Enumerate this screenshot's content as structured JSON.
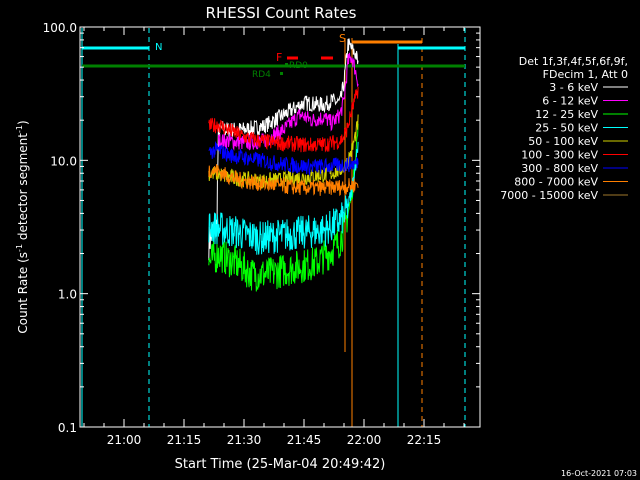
{
  "chart_data": {
    "type": "line",
    "title": "RHESSI Count Rates",
    "xlabel": "Start Time (25-Mar-04 20:49:42)",
    "ylabel": "Count Rate (s",
    "ylabel_exp": "-1",
    "ylabel_mid": " detector segment",
    "ylabel_exp2": "-1",
    "ylabel_end": ")",
    "yscale": "log",
    "ylim": [
      0.1,
      100.0
    ],
    "xlim": [
      "20:49:42",
      "22:29:42"
    ],
    "x_ticks": [
      "21:00",
      "21:15",
      "21:30",
      "21:45",
      "22:00",
      "22:15"
    ],
    "y_ticks": [
      "0.1",
      "1.0",
      "10.0",
      "100.0"
    ],
    "timestamp": "16-Oct-2021 07:03",
    "legend": {
      "placement": "right",
      "header1": "Det 1f,3f,4f,5f,6f,9f,",
      "header2": "FDecim 1, Att 0",
      "entries": [
        {
          "label": "3 - 6 keV",
          "color": "#ffffff"
        },
        {
          "label": "6 - 12 keV",
          "color": "#ff00ff"
        },
        {
          "label": "12 - 25 keV",
          "color": "#00ff00"
        },
        {
          "label": "25 - 50 keV",
          "color": "#00ffff"
        },
        {
          "label": "50 - 100 keV",
          "color": "#d2d200"
        },
        {
          "label": "100 - 300 keV",
          "color": "#ff0000"
        },
        {
          "label": "300 - 800 keV",
          "color": "#0000ff"
        },
        {
          "label": "800 - 7000 keV",
          "color": "#ff7f00"
        },
        {
          "label": "7000 - 15000 keV",
          "color": "#a0782d"
        }
      ]
    },
    "annotations": [
      {
        "label": "S",
        "color": "#ff7f00"
      },
      {
        "label": "F",
        "color": "#ff0000"
      },
      {
        "label": "RD0",
        "color": "#008000"
      },
      {
        "label": "RD4",
        "color": "#008000"
      }
    ],
    "series": [
      {
        "name": "3 - 6 keV",
        "color": "#ffffff",
        "t": [
          21.2,
          21.6,
          22.0,
          22.4,
          22.8,
          23.2,
          23.6,
          24.0,
          24.4,
          24.8,
          25.2,
          26,
          30,
          35,
          40,
          45,
          50,
          52,
          54,
          55,
          56,
          57,
          58,
          58.6
        ],
        "y": [
          2.4,
          2.6,
          2.8,
          2.9,
          3.0,
          3.2,
          16.5,
          17,
          17,
          17.5,
          17,
          17,
          17,
          18,
          22,
          27,
          26,
          28,
          27,
          38,
          75,
          68,
          62,
          52
        ]
      },
      {
        "name": "6 - 12 keV",
        "color": "#ff00ff",
        "t": [
          23.6,
          26,
          30,
          35,
          40,
          44,
          47,
          50,
          52,
          54,
          55,
          56,
          57,
          58,
          58.6
        ],
        "y": [
          14,
          14,
          13.5,
          14,
          17,
          22,
          20,
          21,
          19,
          22,
          28,
          55,
          60,
          45,
          38
        ]
      },
      {
        "name": "12 - 25 keV",
        "color": "#00ff00",
        "t": [
          21.2,
          22,
          23,
          23.6,
          26,
          28,
          32,
          36,
          40,
          44,
          48,
          50,
          52,
          54,
          55,
          56,
          57,
          58,
          58.6
        ],
        "y": [
          1.7,
          1.8,
          1.9,
          2.0,
          1.8,
          1.7,
          1.4,
          1.4,
          1.5,
          1.6,
          1.7,
          1.9,
          2.1,
          2.5,
          3.0,
          4.0,
          5.5,
          12,
          18
        ]
      },
      {
        "name": "25 - 50 keV",
        "color": "#00ffff",
        "t": [
          21.2,
          23.6,
          26,
          30,
          34,
          38,
          42,
          46,
          50,
          52,
          54,
          55,
          56,
          57,
          58,
          58.6
        ],
        "y": [
          3.2,
          3.1,
          3.0,
          2.8,
          2.6,
          2.7,
          2.8,
          2.9,
          3.0,
          3.2,
          3.5,
          3.8,
          4.5,
          6,
          10,
          14
        ]
      },
      {
        "name": "50 - 100 keV",
        "color": "#d2d200",
        "t": [
          21.2,
          23.6,
          26,
          30,
          34,
          38,
          42,
          46,
          50,
          52,
          54,
          55,
          56,
          57,
          58,
          58.6
        ],
        "y": [
          8.0,
          7.9,
          7.5,
          7.2,
          7.0,
          7.1,
          7.3,
          7.5,
          7.8,
          8.0,
          8.5,
          9.0,
          10,
          12,
          16,
          20
        ]
      },
      {
        "name": "100 - 300 keV",
        "color": "#ff0000",
        "t": [
          21.2,
          23.6,
          26,
          30,
          34,
          38,
          42,
          46,
          50,
          52,
          54,
          55,
          56,
          57,
          58,
          58.6
        ],
        "y": [
          18,
          18.5,
          17,
          15,
          14,
          13.5,
          13.3,
          13,
          13.2,
          13.5,
          14,
          15,
          18,
          24,
          30,
          35
        ]
      },
      {
        "name": "300 - 800 keV",
        "color": "#0000ff",
        "t": [
          21.2,
          23.6,
          26,
          30,
          34,
          38,
          42,
          46,
          50,
          52,
          54,
          56,
          58,
          58.6
        ],
        "y": [
          11.5,
          12,
          11,
          10.5,
          10,
          9.5,
          9.2,
          9.0,
          9.0,
          9.1,
          9.2,
          9.3,
          9.5,
          9.8
        ]
      },
      {
        "name": "800 - 7000 keV",
        "color": "#ff7f00",
        "t": [
          21.2,
          23.6,
          26,
          30,
          34,
          38,
          42,
          46,
          50,
          52,
          54,
          56,
          58,
          58.6
        ],
        "y": [
          8.5,
          8.3,
          7.6,
          7.0,
          6.7,
          6.5,
          6.3,
          6.2,
          6.2,
          6.3,
          6.3,
          6.4,
          6.6,
          7.0
        ]
      }
    ]
  }
}
